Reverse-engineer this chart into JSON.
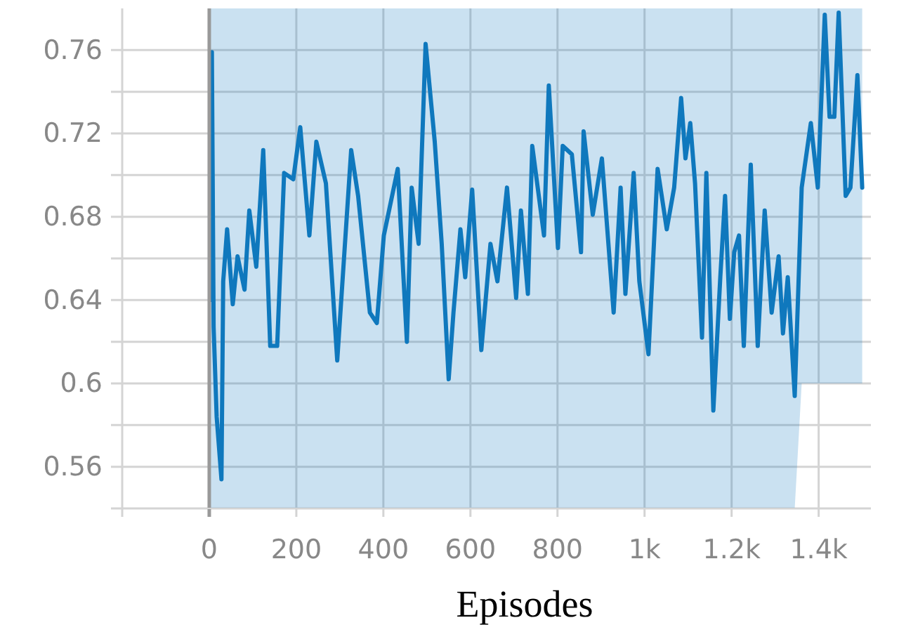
{
  "chart_data": {
    "type": "line",
    "xlabel": "Episodes",
    "xlim": [
      -200,
      1520
    ],
    "ylim": [
      0.54,
      0.78
    ],
    "xticks": [
      {
        "value": -200,
        "label": null
      },
      0,
      200,
      400,
      600,
      800,
      {
        "value": 1000,
        "label": "1k"
      },
      {
        "value": 1200,
        "label": "1.2k"
      },
      {
        "value": 1400,
        "label": "1.4k"
      }
    ],
    "yticks": [
      {
        "value": 0.54,
        "label": null
      },
      0.56,
      {
        "value": 0.58,
        "label": null
      },
      0.6,
      {
        "value": 0.62,
        "label": null
      },
      0.64,
      {
        "value": 0.66,
        "label": null
      },
      0.68,
      {
        "value": 0.7,
        "label": null
      },
      0.72,
      {
        "value": 0.74,
        "label": null
      },
      0.76
    ],
    "grid": true,
    "marker": "none",
    "line_style": "solid",
    "series": [
      {
        "color": "#0f78bd",
        "x": [
          2,
          6,
          10,
          17,
          28,
          32,
          41,
          54,
          65,
          81,
          92,
          108,
          124,
          140,
          156,
          172,
          193,
          209,
          230,
          246,
          268,
          294,
          326,
          342,
          369,
          385,
          401,
          433,
          454,
          465,
          481,
          497,
          518,
          534,
          550,
          561,
          577,
          588,
          604,
          625,
          646,
          662,
          684,
          705,
          716,
          732,
          742,
          769,
          780,
          801,
          812,
          833,
          854,
          860,
          881,
          902,
          929,
          945,
          956,
          975,
          988,
          1009,
          1030,
          1051,
          1068,
          1084,
          1094,
          1105,
          1116,
          1132,
          1142,
          1158,
          1174,
          1185,
          1196,
          1206,
          1217,
          1228,
          1244,
          1260,
          1276,
          1292,
          1308,
          1318,
          1329,
          1345,
          1361,
          1382,
          1398,
          1414,
          1425,
          1436,
          1446,
          1462,
          1473,
          1489,
          1500
        ],
        "values": [
          0.64,
          0.759,
          0.627,
          0.584,
          0.554,
          0.649,
          0.674,
          0.638,
          0.661,
          0.645,
          0.683,
          0.656,
          0.712,
          0.618,
          0.618,
          0.701,
          0.698,
          0.723,
          0.671,
          0.716,
          0.696,
          0.611,
          0.712,
          0.69,
          0.634,
          0.629,
          0.671,
          0.703,
          0.62,
          0.694,
          0.667,
          0.763,
          0.716,
          0.667,
          0.602,
          0.634,
          0.674,
          0.651,
          0.693,
          0.616,
          0.667,
          0.649,
          0.694,
          0.641,
          0.683,
          0.643,
          0.714,
          0.671,
          0.743,
          0.665,
          0.714,
          0.71,
          0.663,
          0.721,
          0.681,
          0.708,
          0.634,
          0.694,
          0.643,
          0.701,
          0.649,
          0.614,
          0.703,
          0.674,
          0.694,
          0.737,
          0.708,
          0.725,
          0.696,
          0.622,
          0.701,
          0.587,
          0.651,
          0.69,
          0.631,
          0.663,
          0.671,
          0.618,
          0.705,
          0.618,
          0.683,
          0.634,
          0.661,
          0.624,
          0.651,
          0.594,
          0.694,
          0.725,
          0.694,
          0.777,
          0.728,
          0.728,
          0.778,
          0.69,
          0.694,
          0.748,
          0.694
        ],
        "lower": [
          0.54,
          0.54,
          0.54,
          0.54,
          0.54,
          0.54,
          0.54,
          0.54,
          0.54,
          0.54,
          0.54,
          0.54,
          0.54,
          0.54,
          0.54,
          0.54,
          0.54,
          0.54,
          0.54,
          0.54,
          0.54,
          0.54,
          0.54,
          0.54,
          0.54,
          0.54,
          0.54,
          0.54,
          0.54,
          0.54,
          0.54,
          0.54,
          0.54,
          0.54,
          0.54,
          0.54,
          0.54,
          0.54,
          0.54,
          0.54,
          0.54,
          0.54,
          0.54,
          0.54,
          0.54,
          0.54,
          0.54,
          0.54,
          0.54,
          0.54,
          0.54,
          0.54,
          0.54,
          0.54,
          0.54,
          0.54,
          0.54,
          0.54,
          0.54,
          0.54,
          0.54,
          0.54,
          0.54,
          0.54,
          0.54,
          0.54,
          0.54,
          0.54,
          0.54,
          0.54,
          0.54,
          0.54,
          0.54,
          0.54,
          0.54,
          0.54,
          0.54,
          0.54,
          0.54,
          0.54,
          0.54,
          0.54,
          0.54,
          0.54,
          0.54,
          0.54,
          0.6,
          0.6,
          0.6,
          0.6,
          0.6,
          0.6,
          0.6,
          0.6,
          0.6,
          0.6,
          0.6
        ],
        "upper": [
          0.78,
          0.78,
          0.78,
          0.78,
          0.78,
          0.78,
          0.78,
          0.78,
          0.78,
          0.78,
          0.78,
          0.78,
          0.78,
          0.78,
          0.78,
          0.78,
          0.78,
          0.78,
          0.78,
          0.78,
          0.78,
          0.78,
          0.78,
          0.78,
          0.78,
          0.78,
          0.78,
          0.78,
          0.78,
          0.78,
          0.78,
          0.78,
          0.78,
          0.78,
          0.78,
          0.78,
          0.78,
          0.78,
          0.78,
          0.78,
          0.78,
          0.78,
          0.78,
          0.78,
          0.78,
          0.78,
          0.78,
          0.78,
          0.78,
          0.78,
          0.78,
          0.78,
          0.78,
          0.78,
          0.78,
          0.78,
          0.78,
          0.78,
          0.78,
          0.78,
          0.78,
          0.78,
          0.78,
          0.78,
          0.78,
          0.78,
          0.78,
          0.78,
          0.78,
          0.78,
          0.78,
          0.78,
          0.78,
          0.78,
          0.78,
          0.78,
          0.78,
          0.78,
          0.78,
          0.78,
          0.78,
          0.78,
          0.78,
          0.78,
          0.78,
          0.78,
          0.78,
          0.78,
          0.78,
          0.78,
          0.78,
          0.78,
          0.78,
          0.78,
          0.78,
          0.78,
          0.78
        ]
      }
    ]
  }
}
